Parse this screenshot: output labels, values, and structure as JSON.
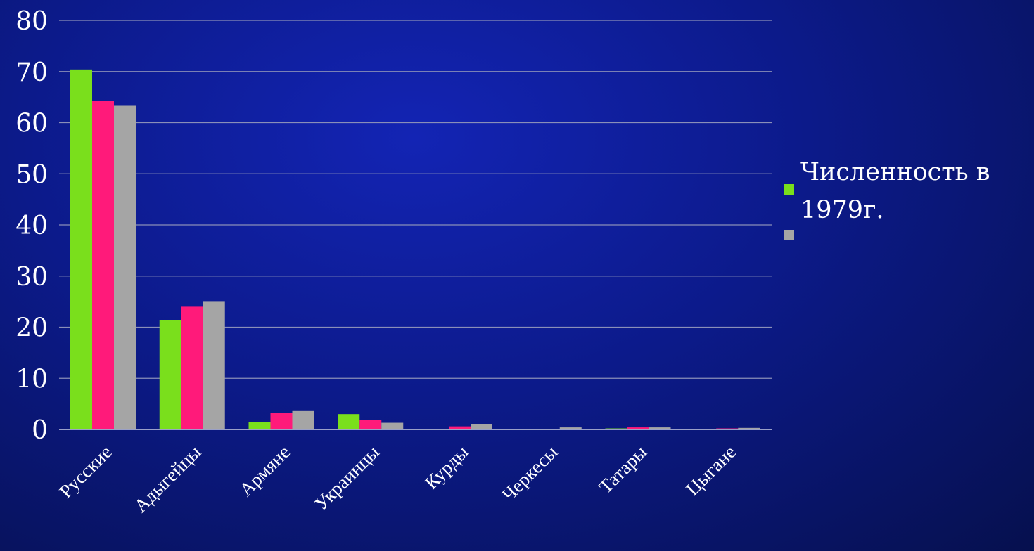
{
  "chart_data": {
    "type": "bar",
    "categories": [
      "Русские",
      "Адыгейцы",
      "Армяне",
      "Украинцы",
      "Курды",
      "Черкесы",
      "Татары",
      "Цыгане"
    ],
    "series": [
      {
        "name": "",
        "color": "#7adf1c",
        "values": [
          70.4,
          21.4,
          1.5,
          3.0,
          0.0,
          0.0,
          0.2,
          0.1
        ]
      },
      {
        "name": "",
        "color": "#ff1a7a",
        "values": [
          64.3,
          24.0,
          3.2,
          1.8,
          0.6,
          0.0,
          0.4,
          0.2
        ]
      },
      {
        "name": "",
        "color": "#a5a5a5",
        "values": [
          63.3,
          25.1,
          3.6,
          1.3,
          1.0,
          0.4,
          0.4,
          0.3
        ]
      }
    ],
    "ylim": [
      0,
      80
    ],
    "yticks": [
      "0",
      "10",
      "20",
      "30",
      "40",
      "50",
      "60",
      "70",
      "80"
    ],
    "grid": true,
    "legend": {
      "position": "right",
      "text": "Численность в 1979г."
    }
  }
}
